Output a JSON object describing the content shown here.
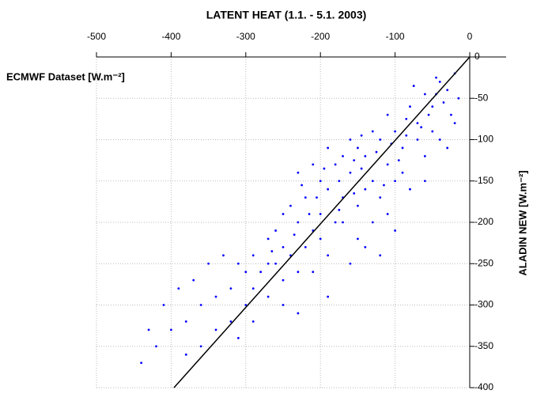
{
  "chart_data": {
    "type": "scatter",
    "title": "LATENT HEAT (1.1. - 5.1. 2003)",
    "x_label": "ECMWF Dataset [W.m⁻²]",
    "y_label": "ALADIN NEW [W.m⁻²]",
    "color": "#0000ff",
    "grid": true,
    "xlim": [
      -500,
      0
    ],
    "xticks": [
      -500,
      -400,
      -300,
      -200,
      -100,
      0
    ],
    "ylim": [
      -400,
      0
    ],
    "yticks": [
      0,
      -50,
      -100,
      -150,
      -200,
      -250,
      -300,
      -350,
      -400
    ],
    "x": [
      -20,
      -30,
      -40,
      -50,
      -25,
      -60,
      -70,
      -40,
      -80,
      -90,
      -100,
      -110,
      -60,
      -120,
      -130,
      -140,
      -150,
      -100,
      -160,
      -170,
      -180,
      -190,
      -200,
      -200,
      -210,
      -220,
      -230,
      -240,
      -210,
      -180,
      -150,
      -120,
      -90,
      -50,
      -30,
      -20,
      -15,
      -45,
      -75,
      -85,
      -110,
      -130,
      -160,
      -170,
      -190,
      -140,
      -230,
      -250,
      -260,
      -250,
      -240,
      -260,
      -270,
      -220,
      -200,
      -170,
      -130,
      -110,
      -80,
      -60,
      -100,
      -120,
      -140,
      -160,
      -190,
      -230,
      -250,
      -270,
      -290,
      -300,
      -320,
      -340,
      -360,
      -380,
      -400,
      -420,
      -440,
      -430,
      -410,
      -390,
      -370,
      -350,
      -330,
      -310,
      -290,
      -300,
      -320,
      -340,
      -360,
      -380,
      -290,
      -270,
      -310,
      -250,
      -230,
      -210,
      -190,
      -150,
      -70,
      -55,
      -35,
      -95,
      -125,
      -145,
      -175,
      -205,
      -215,
      -235,
      -265,
      -280,
      -175,
      -155,
      -115,
      -65,
      -45,
      -145,
      -195,
      -225,
      -155,
      -105,
      -85
    ],
    "y": [
      -20,
      -40,
      -30,
      -60,
      -70,
      -45,
      -80,
      -100,
      -60,
      -110,
      -90,
      -130,
      -120,
      -100,
      -150,
      -120,
      -110,
      -150,
      -140,
      -170,
      -130,
      -160,
      -150,
      -190,
      -130,
      -170,
      -140,
      -180,
      -210,
      -200,
      -180,
      -170,
      -140,
      -90,
      -110,
      -80,
      -50,
      -25,
      -35,
      -75,
      -70,
      -90,
      -100,
      -120,
      -110,
      -160,
      -200,
      -190,
      -210,
      -230,
      -240,
      -250,
      -220,
      -230,
      -220,
      -200,
      -200,
      -190,
      -160,
      -150,
      -210,
      -240,
      -230,
      -250,
      -240,
      -260,
      -270,
      -250,
      -240,
      -260,
      -280,
      -290,
      -300,
      -320,
      -330,
      -350,
      -370,
      -330,
      -300,
      -280,
      -270,
      -250,
      -240,
      -250,
      -280,
      -300,
      -320,
      -330,
      -350,
      -360,
      -320,
      -290,
      -340,
      -300,
      -310,
      -260,
      -290,
      -220,
      -100,
      -70,
      -55,
      -125,
      -115,
      -135,
      -150,
      -170,
      -190,
      -215,
      -235,
      -260,
      -185,
      -165,
      -155,
      -85,
      -45,
      -95,
      -135,
      -155,
      -125,
      -105,
      -95
    ]
  }
}
